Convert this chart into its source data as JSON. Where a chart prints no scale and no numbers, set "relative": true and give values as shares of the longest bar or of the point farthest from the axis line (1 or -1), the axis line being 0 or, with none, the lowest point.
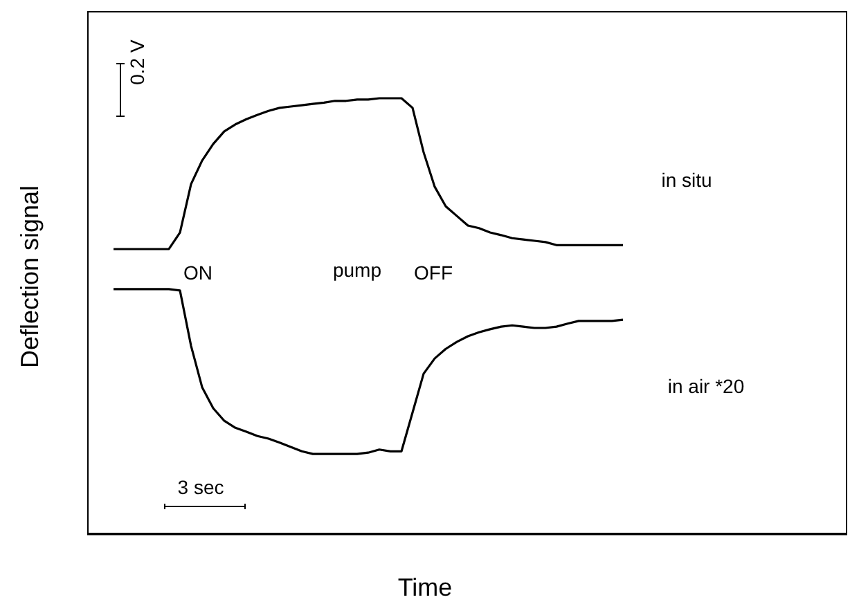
{
  "chart_data": {
    "type": "line",
    "relative": true,
    "xlabel": "Time",
    "ylabel": "Deflection signal",
    "categories": [
      null,
      null,
      null,
      null,
      null,
      null,
      null,
      null,
      null,
      null,
      null,
      null,
      null,
      null,
      null,
      null,
      null,
      null,
      null,
      null,
      null,
      null,
      null,
      null,
      null,
      null,
      null,
      null,
      null,
      null,
      null,
      null,
      null,
      null,
      null,
      null,
      null,
      null,
      null,
      null,
      null,
      null,
      null,
      null,
      null,
      null,
      null
    ],
    "series": [
      {
        "name": "in situ",
        "color": "#000000",
        "values": [
          0.654,
          0.654,
          0.654,
          0.654,
          0.654,
          0.654,
          0.692,
          0.803,
          0.857,
          0.895,
          0.924,
          0.94,
          0.952,
          0.962,
          0.971,
          0.978,
          0.981,
          0.984,
          0.987,
          0.99,
          0.994,
          0.994,
          0.997,
          0.997,
          1,
          1,
          1,
          0.978,
          0.876,
          0.797,
          0.752,
          0.73,
          0.708,
          0.702,
          0.692,
          0.686,
          0.679,
          0.676,
          0.673,
          0.67,
          0.663,
          0.663,
          0.663,
          0.663,
          0.663,
          0.663,
          0.663
        ]
      },
      {
        "name": "in air *20",
        "color": "#000000",
        "values": [
          0.562,
          0.562,
          0.562,
          0.562,
          0.562,
          0.562,
          0.559,
          0.432,
          0.337,
          0.289,
          0.26,
          0.244,
          0.235,
          0.225,
          0.219,
          0.21,
          0.2,
          0.19,
          0.184,
          0.184,
          0.184,
          0.184,
          0.184,
          0.187,
          0.194,
          0.19,
          0.19,
          0.279,
          0.368,
          0.403,
          0.425,
          0.441,
          0.454,
          0.463,
          0.47,
          0.476,
          0.479,
          0.476,
          0.473,
          0.473,
          0.476,
          0.483,
          0.489,
          0.489,
          0.489,
          0.489,
          0.492
        ]
      }
    ],
    "annotations": [
      "ON",
      "pump",
      "OFF",
      "0.2 V",
      "3 sec"
    ],
    "marker": "none",
    "line_style": "solid"
  }
}
